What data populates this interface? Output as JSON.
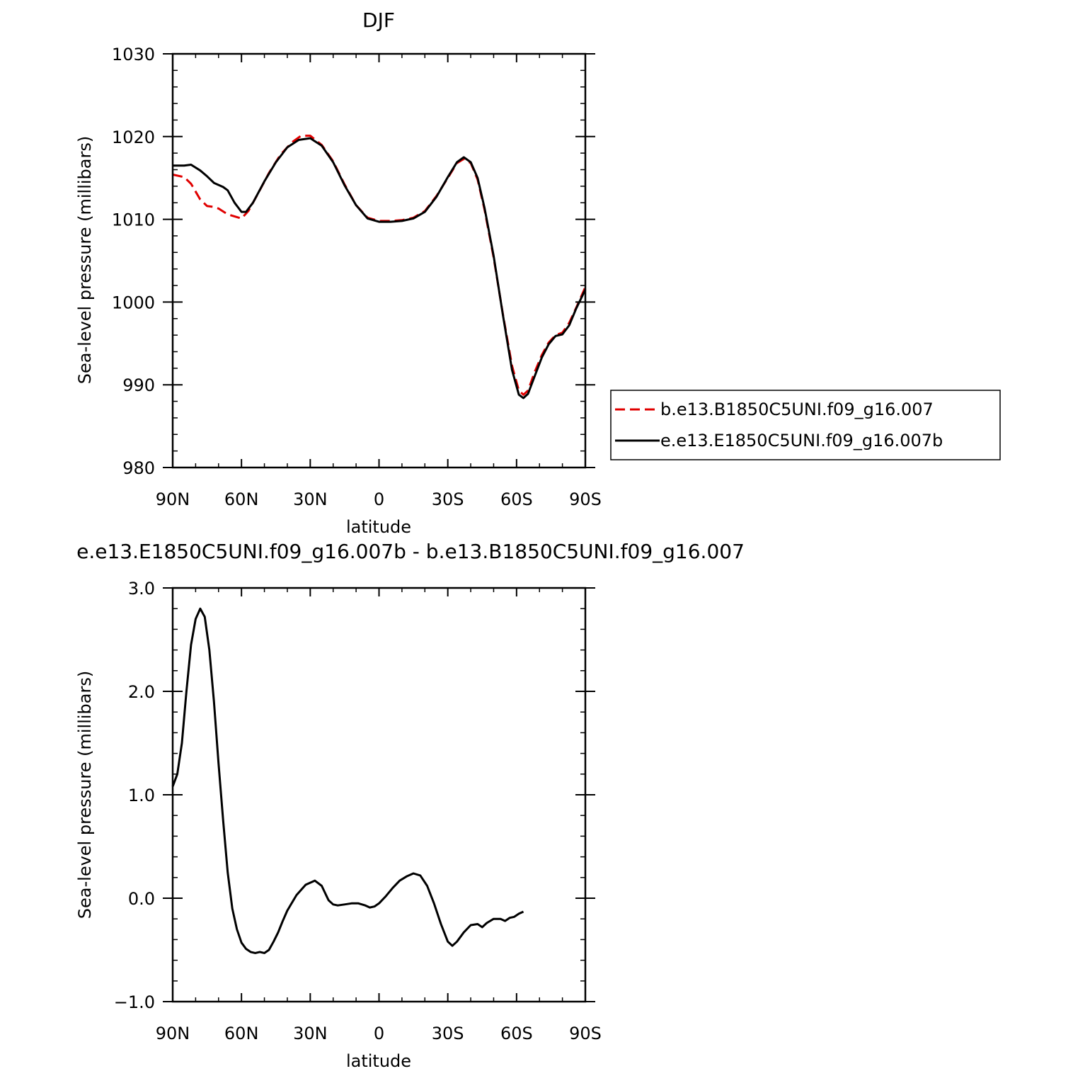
{
  "chart_data": [
    {
      "type": "line",
      "title": "DJF",
      "xlabel": "latitude",
      "ylabel": "Sea-level pressure (millibars)",
      "xlim": [
        90,
        -90
      ],
      "ylim": [
        980,
        1030
      ],
      "xticks": [
        90,
        60,
        30,
        0,
        -30,
        -60,
        -90
      ],
      "xtick_labels": [
        "90N",
        "60N",
        "30N",
        "0",
        "30S",
        "60S",
        "90S"
      ],
      "yticks": [
        980,
        990,
        1000,
        1010,
        1020,
        1030
      ],
      "ytick_labels": [
        "980",
        "990",
        "1000",
        "1010",
        "1020",
        "1030"
      ],
      "legend_position": "right",
      "series": [
        {
          "name": "b.e13.B1850C5UNI.f09_g16.007",
          "color": "#e00000",
          "dash": "dashed",
          "points": [
            [
              90,
              1015.4
            ],
            [
              85,
              1015.1
            ],
            [
              82,
              1014.3
            ],
            [
              78,
              1012.4
            ],
            [
              75,
              1011.6
            ],
            [
              72,
              1011.5
            ],
            [
              70,
              1011.3
            ],
            [
              66,
              1010.6
            ],
            [
              60,
              1010.1
            ],
            [
              57,
              1011.0
            ],
            [
              53,
              1013.0
            ],
            [
              48,
              1015.6
            ],
            [
              43,
              1017.8
            ],
            [
              38,
              1019.3
            ],
            [
              34,
              1020.1
            ],
            [
              30,
              1020.1
            ],
            [
              25,
              1019.0
            ],
            [
              20,
              1017.0
            ],
            [
              15,
              1014.2
            ],
            [
              10,
              1011.7
            ],
            [
              5,
              1010.2
            ],
            [
              0,
              1009.8
            ],
            [
              -5,
              1009.8
            ],
            [
              -10,
              1009.9
            ],
            [
              -15,
              1010.2
            ],
            [
              -20,
              1011.0
            ],
            [
              -25,
              1012.8
            ],
            [
              -30,
              1015.0
            ],
            [
              -34,
              1016.8
            ],
            [
              -37,
              1017.3
            ],
            [
              -40,
              1016.8
            ],
            [
              -43,
              1014.8
            ],
            [
              -46,
              1011.2
            ],
            [
              -50,
              1005.4
            ],
            [
              -54,
              998.6
            ],
            [
              -58,
              992.3
            ],
            [
              -61,
              989.3
            ],
            [
              -63,
              988.8
            ],
            [
              -65,
              989.3
            ],
            [
              -68,
              991.6
            ],
            [
              -71,
              993.6
            ],
            [
              -74,
              995.1
            ],
            [
              -77,
              996.0
            ],
            [
              -80,
              996.3
            ],
            [
              -83,
              997.5
            ],
            [
              -86,
              999.3
            ],
            [
              -90,
              1001.8
            ]
          ]
        },
        {
          "name": "e.e13.E1850C5UNI.f09_g16.007b",
          "color": "#000000",
          "dash": "solid",
          "points": [
            [
              90,
              1016.5
            ],
            [
              85,
              1016.5
            ],
            [
              82,
              1016.6
            ],
            [
              78,
              1015.9
            ],
            [
              75,
              1015.2
            ],
            [
              72,
              1014.4
            ],
            [
              68,
              1013.9
            ],
            [
              66,
              1013.5
            ],
            [
              63,
              1012.0
            ],
            [
              60,
              1010.9
            ],
            [
              58,
              1010.9
            ],
            [
              55,
              1012.0
            ],
            [
              50,
              1014.6
            ],
            [
              45,
              1016.9
            ],
            [
              40,
              1018.7
            ],
            [
              35,
              1019.6
            ],
            [
              30,
              1019.8
            ],
            [
              25,
              1018.9
            ],
            [
              20,
              1016.9
            ],
            [
              15,
              1014.1
            ],
            [
              10,
              1011.7
            ],
            [
              5,
              1010.1
            ],
            [
              0,
              1009.7
            ],
            [
              -5,
              1009.7
            ],
            [
              -10,
              1009.8
            ],
            [
              -15,
              1010.1
            ],
            [
              -20,
              1010.9
            ],
            [
              -25,
              1012.7
            ],
            [
              -30,
              1015.1
            ],
            [
              -34,
              1016.9
            ],
            [
              -37,
              1017.5
            ],
            [
              -40,
              1016.9
            ],
            [
              -43,
              1015.0
            ],
            [
              -46,
              1011.4
            ],
            [
              -50,
              1005.6
            ],
            [
              -54,
              998.5
            ],
            [
              -58,
              991.8
            ],
            [
              -61,
              988.8
            ],
            [
              -63,
              988.4
            ],
            [
              -65,
              988.9
            ],
            [
              -68,
              991.1
            ],
            [
              -71,
              993.3
            ],
            [
              -74,
              994.9
            ],
            [
              -77,
              995.9
            ],
            [
              -80,
              996.1
            ],
            [
              -83,
              997.2
            ],
            [
              -86,
              999.2
            ],
            [
              -90,
              1001.5
            ]
          ]
        }
      ]
    },
    {
      "type": "line",
      "title": "e.e13.E1850C5UNI.f09_g16.007b - b.e13.B1850C5UNI.f09_g16.007",
      "xlabel": "latitude",
      "ylabel": "Sea-level pressure (millibars)",
      "xlim": [
        90,
        -90
      ],
      "ylim": [
        -1.0,
        3.0
      ],
      "xticks": [
        90,
        60,
        30,
        0,
        -30,
        -60,
        -90
      ],
      "xtick_labels": [
        "90N",
        "60N",
        "30N",
        "0",
        "30S",
        "60S",
        "90S"
      ],
      "yticks": [
        -1.0,
        0.0,
        1.0,
        2.0,
        3.0
      ],
      "ytick_labels": [
        "−1.0",
        "0.0",
        "1.0",
        "2.0",
        "3.0"
      ],
      "series": [
        {
          "name": "",
          "color": "#000000",
          "dash": "solid",
          "points": [
            [
              90,
              1.08
            ],
            [
              88,
              1.2
            ],
            [
              86,
              1.5
            ],
            [
              84,
              2.0
            ],
            [
              82,
              2.45
            ],
            [
              80,
              2.7
            ],
            [
              78,
              2.8
            ],
            [
              76,
              2.72
            ],
            [
              74,
              2.4
            ],
            [
              72,
              1.9
            ],
            [
              70,
              1.3
            ],
            [
              68,
              0.75
            ],
            [
              66,
              0.25
            ],
            [
              64,
              -0.1
            ],
            [
              62,
              -0.3
            ],
            [
              60,
              -0.43
            ],
            [
              58,
              -0.49
            ],
            [
              56,
              -0.52
            ],
            [
              54,
              -0.53
            ],
            [
              52,
              -0.52
            ],
            [
              50,
              -0.53
            ],
            [
              48,
              -0.5
            ],
            [
              46,
              -0.42
            ],
            [
              44,
              -0.33
            ],
            [
              42,
              -0.22
            ],
            [
              40,
              -0.12
            ],
            [
              36,
              0.03
            ],
            [
              32,
              0.13
            ],
            [
              28,
              0.17
            ],
            [
              25,
              0.12
            ],
            [
              22,
              -0.02
            ],
            [
              20,
              -0.06
            ],
            [
              18,
              -0.07
            ],
            [
              15,
              -0.06
            ],
            [
              12,
              -0.05
            ],
            [
              9,
              -0.05
            ],
            [
              6,
              -0.07
            ],
            [
              4,
              -0.09
            ],
            [
              2,
              -0.08
            ],
            [
              0,
              -0.05
            ],
            [
              -3,
              0.02
            ],
            [
              -6,
              0.1
            ],
            [
              -9,
              0.17
            ],
            [
              -12,
              0.21
            ],
            [
              -15,
              0.24
            ],
            [
              -18,
              0.22
            ],
            [
              -21,
              0.12
            ],
            [
              -24,
              -0.05
            ],
            [
              -27,
              -0.25
            ],
            [
              -30,
              -0.42
            ],
            [
              -32,
              -0.46
            ],
            [
              -34,
              -0.42
            ],
            [
              -37,
              -0.33
            ],
            [
              -40,
              -0.26
            ],
            [
              -43,
              -0.25
            ],
            [
              -45,
              -0.28
            ],
            [
              -47,
              -0.24
            ],
            [
              -50,
              -0.2
            ],
            [
              -53,
              -0.2
            ],
            [
              -55,
              -0.22
            ],
            [
              -57,
              -0.19
            ],
            [
              -59,
              -0.18
            ],
            [
              -61,
              -0.15
            ],
            [
              -63,
              -0.13
            ]
          ]
        }
      ]
    }
  ]
}
